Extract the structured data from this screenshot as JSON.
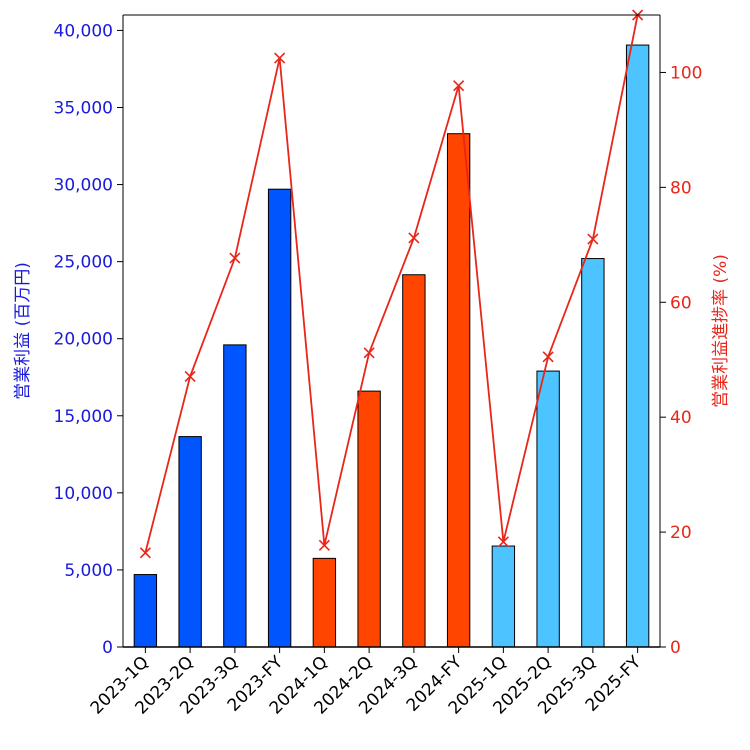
{
  "chart_data": {
    "type": "bar+line",
    "categories": [
      "2023-1Q",
      "2023-2Q",
      "2023-3Q",
      "2023-FY",
      "2024-1Q",
      "2024-2Q",
      "2024-3Q",
      "2024-FY",
      "2025-1Q",
      "2025-2Q",
      "2025-3Q",
      "2025-FY"
    ],
    "series": [
      {
        "name": "営業利益",
        "type": "bar",
        "axis": "left",
        "values": [
          4700,
          13650,
          19600,
          29700,
          5750,
          16600,
          24150,
          33300,
          6550,
          17900,
          25200,
          39050
        ],
        "colors": [
          "#0055ff",
          "#0055ff",
          "#0055ff",
          "#0055ff",
          "#ff4500",
          "#ff4500",
          "#ff4500",
          "#ff4500",
          "#4dc3ff",
          "#4dc3ff",
          "#4dc3ff",
          "#4dc3ff"
        ]
      },
      {
        "name": "営業利益進捗率",
        "type": "line",
        "axis": "right",
        "marker": "x",
        "color": "#e8261a",
        "values": [
          16.4,
          47.1,
          67.7,
          102.5,
          17.7,
          51.2,
          71.2,
          97.7,
          18.3,
          50.5,
          71.0,
          110.0
        ]
      }
    ],
    "ylabel_left": "営業利益 (百万円)",
    "ylabel_right": "営業利益進捗率 (%)",
    "ylim_left": [
      0,
      41000
    ],
    "ylim_right": [
      0,
      110
    ],
    "yticks_left": [
      0,
      5000,
      10000,
      15000,
      20000,
      25000,
      30000,
      35000,
      40000
    ],
    "yticks_left_labels": [
      "0",
      "5,000",
      "10,000",
      "15,000",
      "20,000",
      "25,000",
      "30,000",
      "35,000",
      "40,000"
    ],
    "yticks_right": [
      0,
      20,
      40,
      60,
      80,
      100
    ],
    "yticks_right_labels": [
      "0",
      "20",
      "40",
      "60",
      "80",
      "100"
    ],
    "left_axis_color": "#1a1adb",
    "right_axis_color": "#e8261a",
    "grid": false,
    "title": ""
  }
}
